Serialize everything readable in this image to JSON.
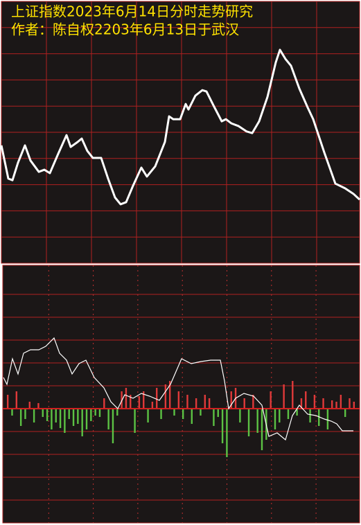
{
  "chart_data": [
    {
      "type": "line",
      "title": "上证指数2023年6月14日分时走势研究",
      "subtitle": "作者：陈自权2203年6月13日于武汉",
      "xlim": [
        0,
        521
      ],
      "ylim": [
        0,
        100
      ],
      "color": "#ffffff",
      "x": [
        2,
        12,
        18,
        26,
        36,
        44,
        56,
        64,
        72,
        84,
        96,
        102,
        112,
        118,
        126,
        134,
        146,
        156,
        166,
        174,
        182,
        192,
        204,
        212,
        224,
        238,
        244,
        250,
        260,
        268,
        272,
        282,
        292,
        298,
        308,
        320,
        326,
        334,
        344,
        356,
        364,
        374,
        386,
        398,
        404,
        412,
        420,
        432,
        444,
        452,
        468,
        484,
        498,
        510,
        519
      ],
      "values": [
        45,
        32.3,
        31.7,
        38.4,
        45,
        39.2,
        34.9,
        35.7,
        34.4,
        41.8,
        48.9,
        44.4,
        46.3,
        47.6,
        42.9,
        40.2,
        40.2,
        32.3,
        25.1,
        22.5,
        23.3,
        29.6,
        36.5,
        33.1,
        37,
        46.3,
        56.1,
        55,
        55,
        60.8,
        58.7,
        64,
        66.1,
        65.6,
        60.3,
        54.2,
        55,
        53.4,
        52.4,
        50.3,
        49.7,
        54.2,
        63.5,
        76.7,
        81.5,
        78,
        75.4,
        66.7,
        59.5,
        55,
        42.3,
        30.4,
        28.6,
        26.5,
        24.3
      ]
    },
    {
      "type": "bar",
      "ylim": [
        -165,
        207
      ],
      "colors": {
        "positive": "#e03a3a",
        "negative": "#5cc244"
      },
      "categories": [
        null,
        null,
        null,
        null,
        null,
        null,
        null,
        null,
        null,
        null,
        null,
        null,
        null,
        null,
        null,
        null,
        null,
        null,
        null,
        null,
        null,
        null,
        null,
        null,
        null,
        null,
        null,
        null,
        null,
        null,
        null,
        null,
        null,
        null,
        null,
        null,
        null,
        null,
        null,
        null,
        null,
        null,
        null,
        null,
        null,
        null,
        null,
        null,
        null,
        null,
        null,
        null,
        null,
        null,
        null,
        null,
        null,
        null,
        null,
        null,
        null,
        null,
        null,
        null,
        null,
        null,
        null,
        null,
        null,
        null,
        null,
        null,
        null,
        null,
        null,
        null,
        null,
        null,
        null,
        null
      ],
      "values": [
        20,
        -10,
        25,
        -25,
        -15,
        10,
        -20,
        8,
        -12,
        -18,
        -30,
        -20,
        -28,
        -35,
        -15,
        -25,
        -22,
        -40,
        -30,
        -18,
        -10,
        -12,
        15,
        -30,
        -50,
        -10,
        25,
        30,
        20,
        -35,
        18,
        25,
        -20,
        10,
        30,
        -15,
        35,
        40,
        -10,
        25,
        -15,
        20,
        -22,
        15,
        -10,
        20,
        15,
        -25,
        -12,
        -50,
        -70,
        25,
        30,
        -20,
        15,
        -40,
        20,
        -35,
        -60,
        -45,
        25,
        -30,
        -20,
        35,
        -15,
        40,
        -10,
        15,
        25,
        -20,
        20,
        -25,
        15,
        -30,
        12,
        10,
        20,
        -12,
        15,
        10
      ],
      "line": {
        "color": "#ffffff",
        "xlim": [
          0,
          521
        ],
        "x": [
          5,
          10,
          18,
          26,
          34,
          44,
          56,
          66,
          78,
          86,
          96,
          104,
          114,
          124,
          136,
          150,
          160,
          170,
          180,
          192,
          204,
          216,
          230,
          246,
          262,
          276,
          290,
          304,
          318,
          324,
          330,
          340,
          352,
          366,
          378,
          388,
          400,
          412,
          422,
          432,
          444,
          456,
          468,
          478,
          486,
          494,
          510
        ],
        "values": [
          45,
          35,
          72,
          50,
          80,
          85,
          85,
          90,
          102,
          80,
          70,
          50,
          65,
          70,
          45,
          30,
          10,
          0,
          20,
          15,
          22,
          18,
          12,
          35,
          72,
          65,
          68,
          70,
          70,
          40,
          0,
          15,
          22,
          18,
          5,
          -40,
          -35,
          -45,
          -10,
          5,
          -8,
          -10,
          -15,
          -18,
          -22,
          -32,
          -32
        ]
      }
    }
  ]
}
